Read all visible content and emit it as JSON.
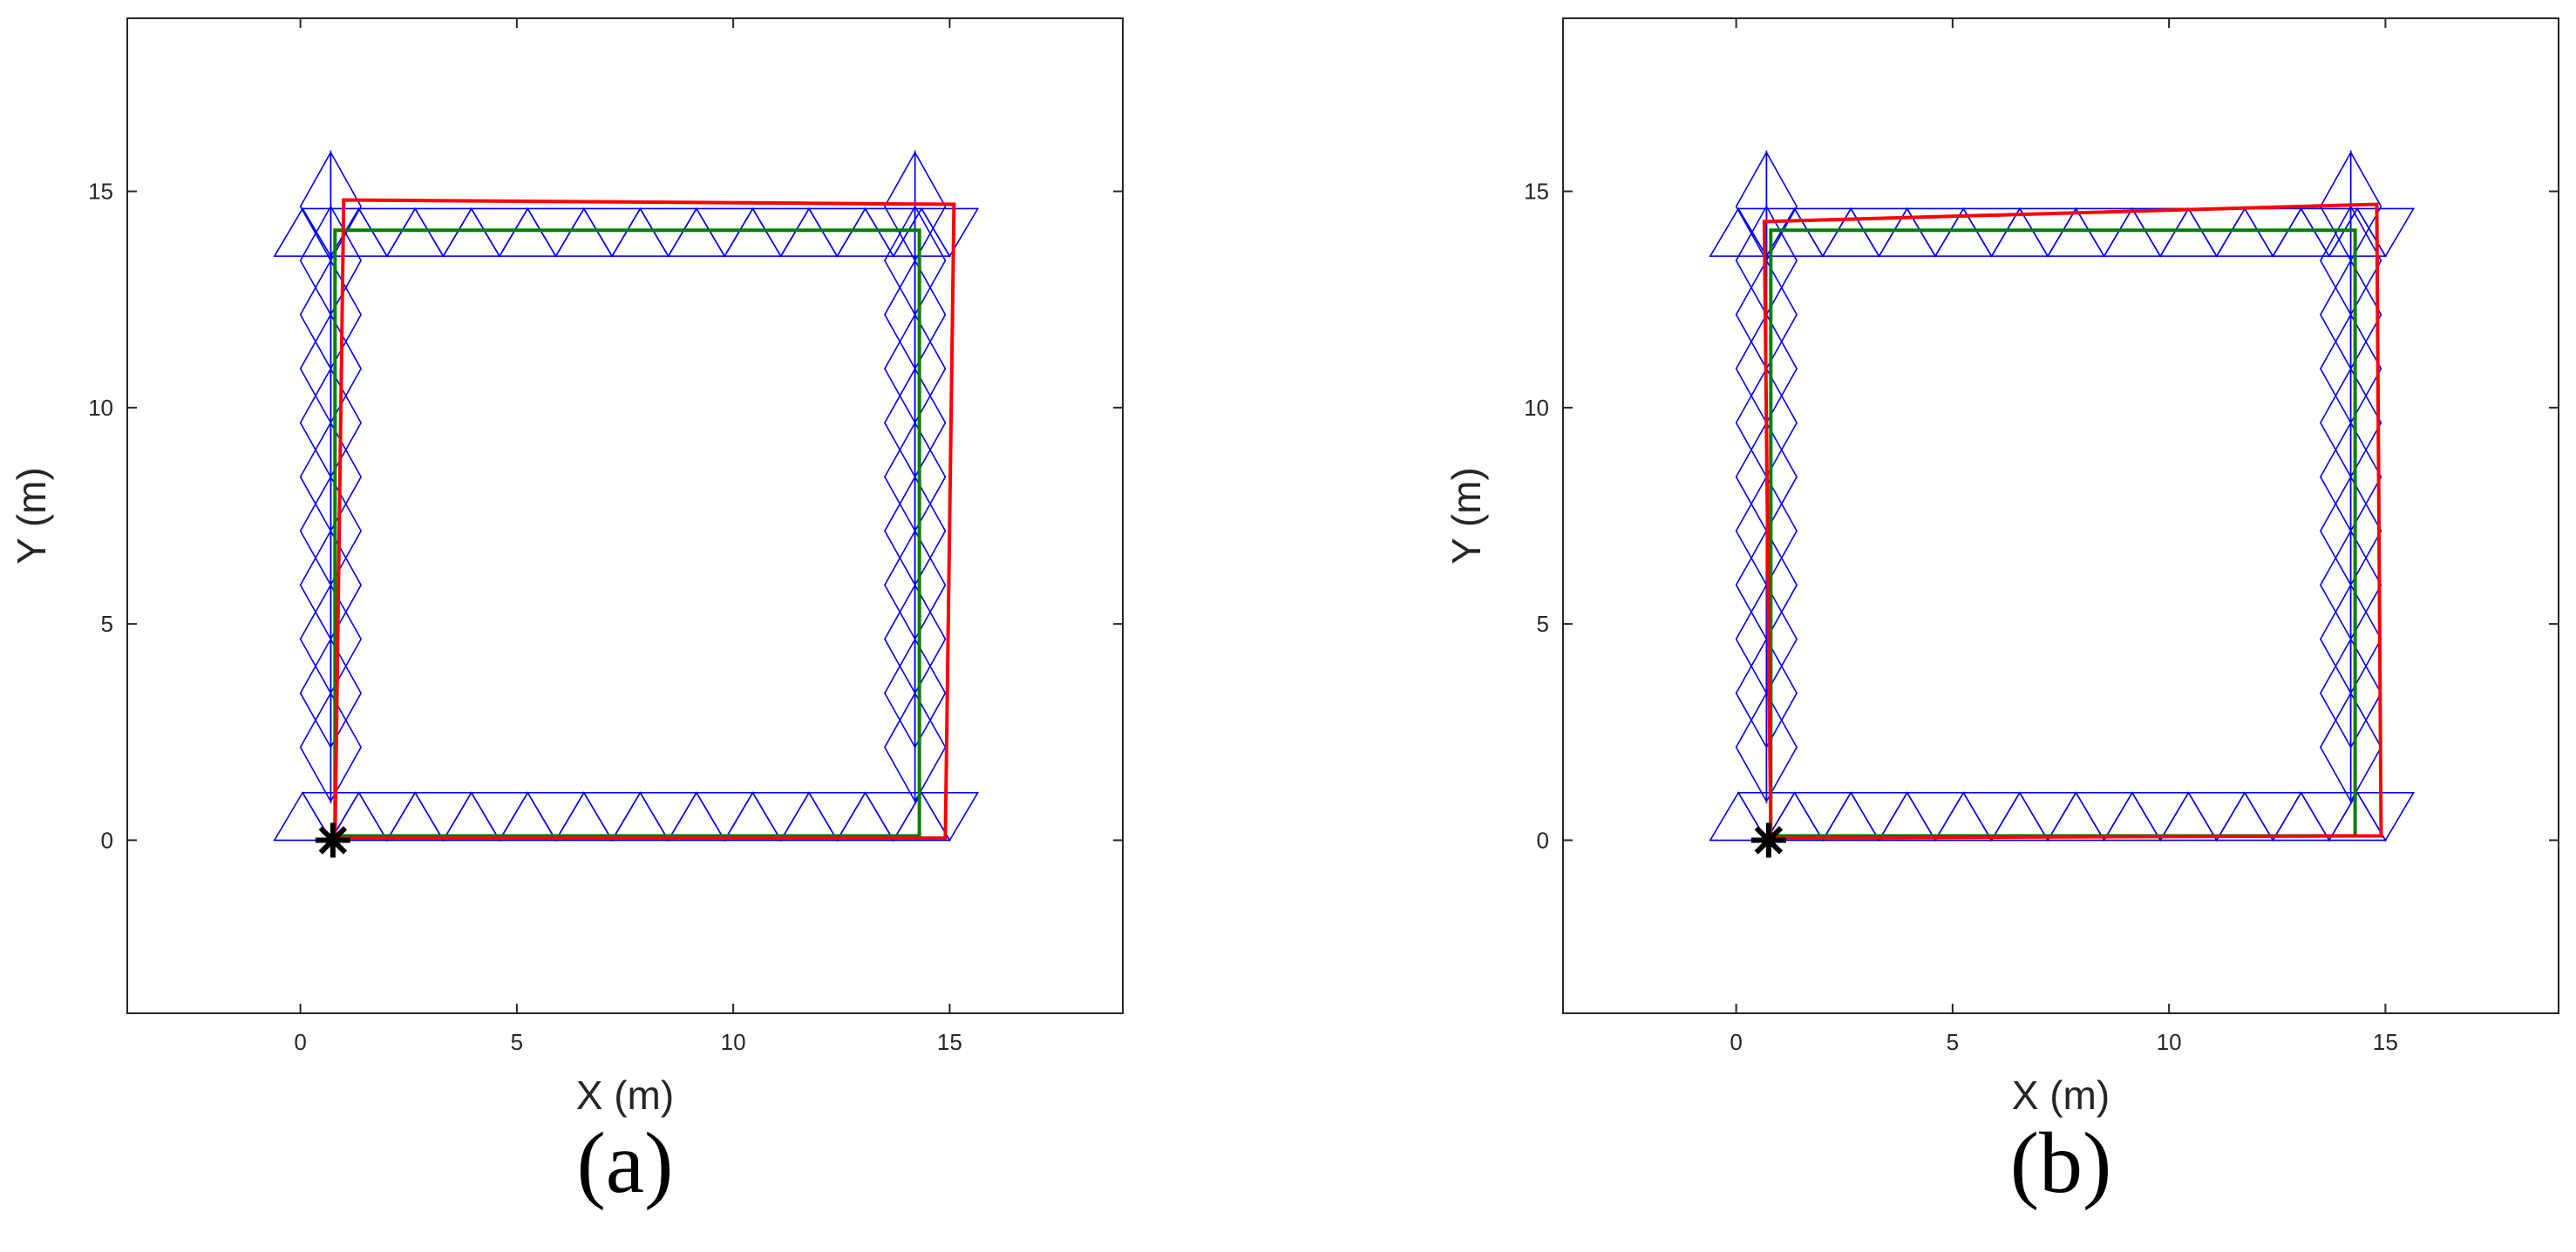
{
  "colors": {
    "ground_truth": "#008000",
    "estimate": "#ff0000",
    "mesh": "#0000ff",
    "marker": "#000000",
    "axes": "#262626"
  },
  "chart_data": [
    {
      "type": "line",
      "panel_label": "(a)",
      "xlabel": "X  (m)",
      "ylabel": "Y  (m)",
      "xlim": [
        -4,
        19
      ],
      "ylim": [
        -4,
        19
      ],
      "xticks": [
        0,
        5,
        10,
        15
      ],
      "yticks": [
        0,
        5,
        10,
        15
      ],
      "grid": false,
      "series": [
        {
          "color": "#008000",
          "x": [
            0.8,
            14.3,
            14.3,
            0.8,
            0.8
          ],
          "y": [
            0.1,
            0.1,
            14.1,
            14.1,
            0.1
          ]
        },
        {
          "color": "#ff0000",
          "x": [
            0.8,
            14.9,
            15.1,
            1.0,
            0.8
          ],
          "y": [
            0.05,
            0.05,
            14.7,
            14.8,
            0.05
          ]
        }
      ],
      "start_marker": {
        "symbol": "*",
        "x": 0.75,
        "y": 0.0
      },
      "mesh": {
        "color": "#0000ff",
        "columns_x": [
          0.7,
          14.2
        ],
        "row_y": [
          0.9,
          14.4
        ],
        "x_range": [
          -0.6,
          15.6
        ],
        "y_range": [
          0.0,
          15.0
        ]
      }
    },
    {
      "type": "line",
      "panel_label": "(b)",
      "xlabel": "X  (m)",
      "ylabel": "Y  (m)",
      "xlim": [
        -4,
        19
      ],
      "ylim": [
        -4,
        19
      ],
      "xticks": [
        0,
        5,
        10,
        15
      ],
      "yticks": [
        0,
        5,
        10,
        15
      ],
      "grid": false,
      "series": [
        {
          "color": "#008000",
          "x": [
            0.8,
            14.3,
            14.3,
            0.8,
            0.8
          ],
          "y": [
            0.1,
            0.1,
            14.1,
            14.1,
            0.1
          ]
        },
        {
          "color": "#ff0000",
          "x": [
            0.8,
            14.9,
            14.8,
            0.65,
            0.8
          ],
          "y": [
            0.05,
            0.1,
            14.7,
            14.3,
            0.05
          ]
        }
      ],
      "start_marker": {
        "symbol": "*",
        "x": 0.75,
        "y": 0.0
      },
      "mesh": {
        "color": "#0000ff",
        "columns_x": [
          0.7,
          14.2
        ],
        "row_y": [
          0.9,
          14.4
        ],
        "x_range": [
          -0.6,
          15.6
        ],
        "y_range": [
          0.0,
          15.0
        ]
      }
    }
  ]
}
